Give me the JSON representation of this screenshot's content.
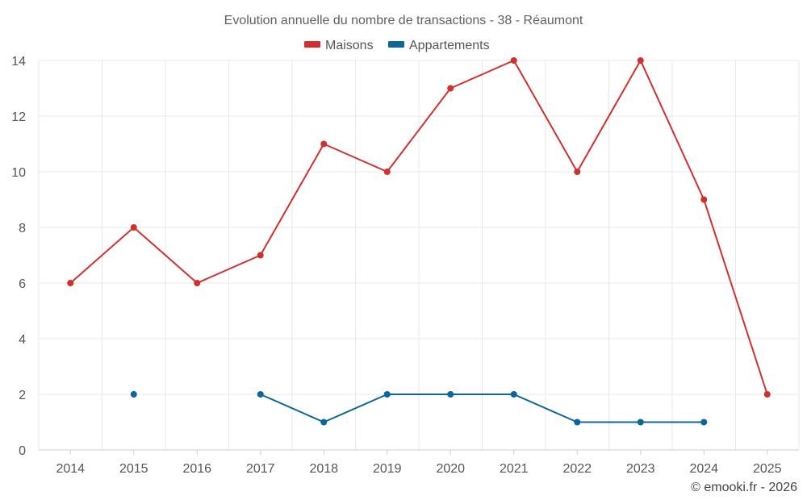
{
  "chart_data": {
    "type": "line",
    "title": "Evolution annuelle du nombre de transactions - 38 - Réaumont",
    "categories": [
      "2014",
      "2015",
      "2016",
      "2017",
      "2018",
      "2019",
      "2020",
      "2021",
      "2022",
      "2023",
      "2024",
      "2025"
    ],
    "series": [
      {
        "name": "Maisons",
        "color": "#d32f2f",
        "values": [
          6,
          8,
          6,
          7,
          11,
          10,
          13,
          14,
          10,
          14,
          9,
          2
        ]
      },
      {
        "name": "Appartements",
        "color": "#0d6699",
        "values": [
          null,
          2,
          null,
          2,
          1,
          2,
          2,
          2,
          1,
          1,
          1,
          null
        ]
      }
    ],
    "ylim": [
      0,
      14
    ],
    "yticks": [
      0,
      2,
      4,
      6,
      8,
      10,
      12,
      14
    ],
    "grid": true,
    "legend_position": "top-center",
    "xlabel": "",
    "ylabel": ""
  },
  "credit": "© emooki.fr - 2026"
}
